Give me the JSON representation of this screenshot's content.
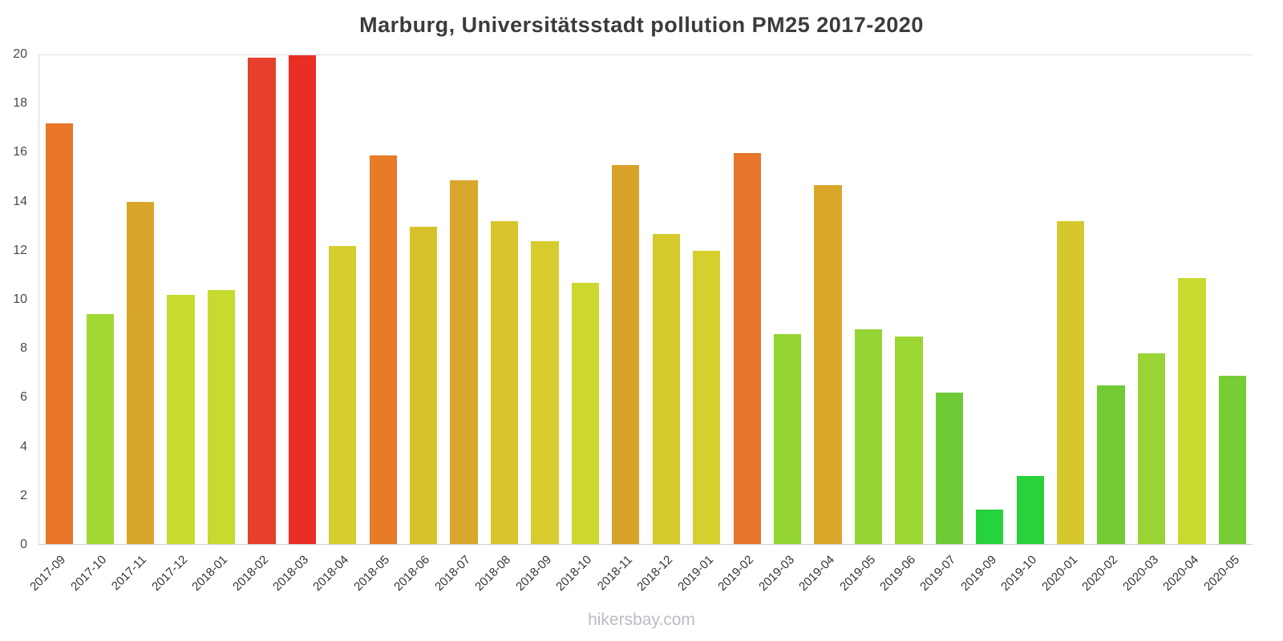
{
  "title": "Marburg, Universitätsstadt pollution PM25 2017-2020",
  "watermark": "hikersbay.com",
  "chart_data": {
    "type": "bar",
    "title": "Marburg, Universitätsstadt pollution PM25 2017-2020",
    "xlabel": "",
    "ylabel": "",
    "ylim": [
      0,
      20
    ],
    "yticks": [
      0,
      2,
      4,
      6,
      8,
      10,
      12,
      14,
      16,
      18,
      20
    ],
    "grid": "top-line-only",
    "legend": "none",
    "categories": [
      "2017-09",
      "2017-10",
      "2017-11",
      "2017-12",
      "2018-01",
      "2018-02",
      "2018-03",
      "2018-04",
      "2018-05",
      "2018-06",
      "2018-07",
      "2018-08",
      "2018-09",
      "2018-10",
      "2018-11",
      "2018-12",
      "2019-01",
      "2019-02",
      "2019-03",
      "2019-04",
      "2019-05",
      "2019-06",
      "2019-07",
      "2019-09",
      "2019-10",
      "2020-01",
      "2020-02",
      "2020-03",
      "2020-04",
      "2020-05"
    ],
    "values": [
      17.2,
      9.4,
      14.0,
      10.2,
      10.4,
      19.9,
      20.0,
      12.2,
      15.9,
      13.0,
      14.9,
      13.2,
      12.4,
      10.7,
      15.5,
      12.7,
      12.0,
      16.0,
      8.6,
      14.7,
      8.8,
      8.5,
      6.2,
      1.4,
      2.8,
      13.2,
      6.5,
      7.8,
      10.9,
      6.9
    ],
    "colors": [
      "#e87427",
      "#a2d832",
      "#d8a62a",
      "#c6da30",
      "#c6da30",
      "#e6402c",
      "#ea2e24",
      "#d6ce2e",
      "#e87b28",
      "#d8c22c",
      "#d9a72b",
      "#d8c42c",
      "#d6cc2e",
      "#ccd830",
      "#d8a32a",
      "#d6c92d",
      "#d6d02f",
      "#e8752c",
      "#93d434",
      "#d9a82b",
      "#96d434",
      "#9cd633",
      "#6fca35",
      "#27d33c",
      "#2bd13a",
      "#d4c82d",
      "#72ca34",
      "#9ad334",
      "#c8d930",
      "#78cc34"
    ]
  }
}
